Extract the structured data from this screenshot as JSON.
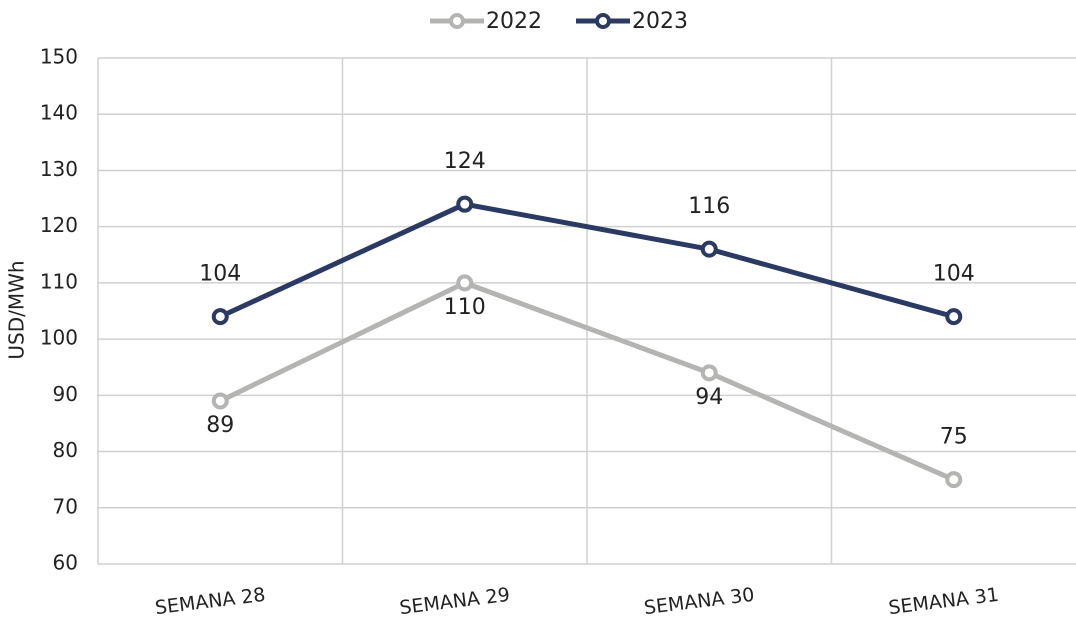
{
  "chart_data": {
    "type": "line",
    "y_label": "USD/MWh",
    "categories": [
      "SEMANA 28",
      "SEMANA 29",
      "SEMANA 30",
      "SEMANA 31"
    ],
    "series": [
      {
        "name": "2022",
        "color": "#b4b5b3",
        "values": [
          89,
          110,
          94,
          75
        ]
      },
      {
        "name": "2023",
        "color": "#2b3a63",
        "values": [
          104,
          124,
          116,
          104
        ]
      }
    ],
    "ylim": [
      60,
      150
    ],
    "yticks": [
      60,
      70,
      80,
      90,
      100,
      110,
      120,
      130,
      140,
      150
    ],
    "grid": true,
    "legend": "top",
    "data_labels": true
  }
}
